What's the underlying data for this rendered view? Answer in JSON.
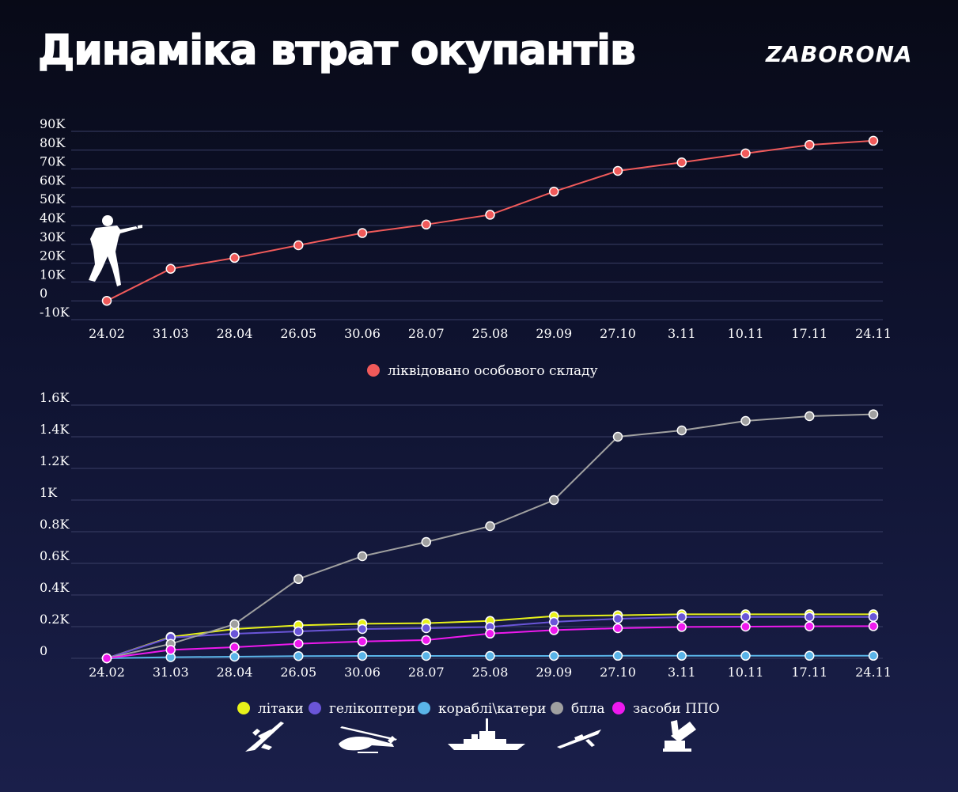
{
  "header": {
    "title": "Динаміка втрат окупантів",
    "brand": "ZABORONA"
  },
  "chart_data": [
    {
      "type": "line",
      "categories": [
        "24.02",
        "31.03",
        "28.04",
        "26.05",
        "30.06",
        "28.07",
        "25.08",
        "29.09",
        "27.10",
        "3.11",
        "10.11",
        "17.11",
        "24.11"
      ],
      "yticks": [
        "90K",
        "80K",
        "70K",
        "60K",
        "50K",
        "40K",
        "30K",
        "20K",
        "10K",
        "0",
        "-10K"
      ],
      "ylim": [
        -10000,
        90000
      ],
      "grid": true,
      "series": [
        {
          "name": "ліквідовано особового складу",
          "color": "#f05a5a",
          "values": [
            0,
            17000,
            22800,
            29500,
            36000,
            40500,
            45700,
            58000,
            69000,
            73500,
            78300,
            82800,
            85000
          ]
        }
      ],
      "legend_position": "bottom-center"
    },
    {
      "type": "line",
      "categories": [
        "24.02",
        "31.03",
        "28.04",
        "26.05",
        "30.06",
        "28.07",
        "25.08",
        "29.09",
        "27.10",
        "3.11",
        "10.11",
        "17.11",
        "24.11"
      ],
      "yticks": [
        "1.6K",
        "1.4K",
        "1.2K",
        "1K",
        "0.8K",
        "0.6K",
        "0.4K",
        "0.2K",
        "0"
      ],
      "ylim": [
        0,
        1600
      ],
      "grid": true,
      "series": [
        {
          "name": "літаки",
          "color": "#e8f21a",
          "values": [
            0,
            135,
            185,
            208,
            218,
            222,
            236,
            266,
            272,
            278,
            278,
            278,
            278
          ]
        },
        {
          "name": "гелікоптери",
          "color": "#6a55d8",
          "values": [
            0,
            131,
            155,
            170,
            185,
            190,
            198,
            230,
            250,
            260,
            261,
            261,
            261
          ]
        },
        {
          "name": "кораблі\\катери",
          "color": "#5ab4e8",
          "values": [
            0,
            7,
            10,
            14,
            15,
            15,
            15,
            15,
            16,
            16,
            16,
            16,
            16
          ]
        },
        {
          "name": "бпла",
          "color": "#a0a0a0",
          "values": [
            0,
            91,
            215,
            501,
            645,
            735,
            835,
            1000,
            1400,
            1440,
            1500,
            1530,
            1542
          ]
        },
        {
          "name": "засоби ППО",
          "color": "#ee19ee",
          "values": [
            0,
            53,
            70,
            92,
            106,
            115,
            156,
            178,
            190,
            198,
            200,
            202,
            203
          ]
        }
      ],
      "legend_position": "bottom-center"
    }
  ],
  "icons": [
    "soldier-icon",
    "airplane-icon",
    "helicopter-icon",
    "warship-icon",
    "drone-icon",
    "air-defense-icon"
  ]
}
